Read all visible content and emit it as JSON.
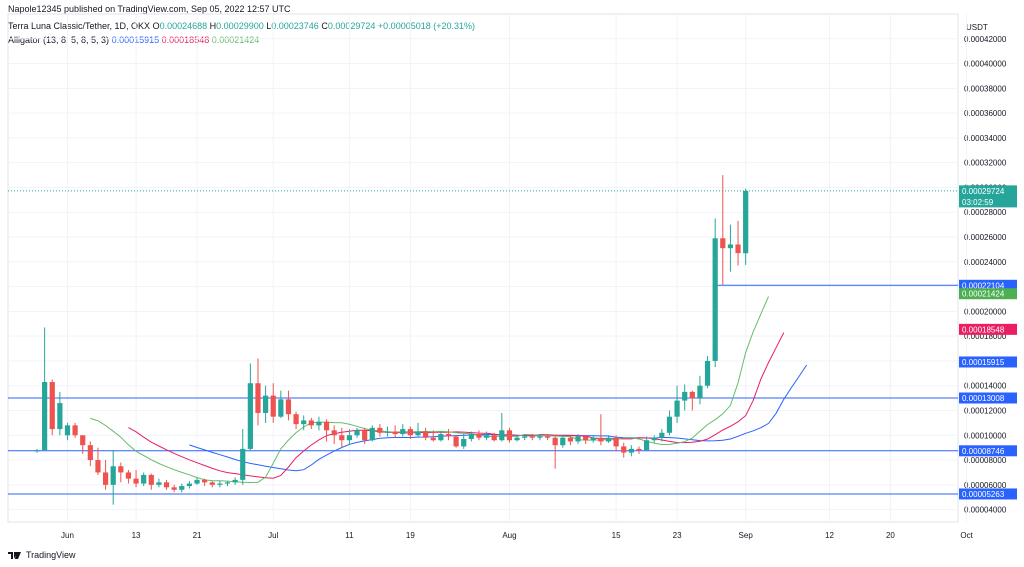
{
  "header": {
    "published": "Napole12345 published on TradingView.com, Sep 05, 2022 12:57 UTC",
    "symbol": "Terra Luna Classic/Tether, 1D, OKX",
    "o_label": "O",
    "o_val": "0.00024688",
    "h_label": "H",
    "h_val": "0.00029900",
    "l_label": "L",
    "l_val": "0.00023746",
    "c_label": "C",
    "c_val": "0.00029724",
    "change": "+0.00005018 (+20.31%)",
    "alligator_label": "Alligator (13, 8, 5, 8, 5, 3)",
    "jaw_val": "0.00015915",
    "teeth_val": "0.00018548",
    "lips_val": "0.00021424"
  },
  "footer": {
    "brand": "TradingView"
  },
  "colors": {
    "up": "#26a69a",
    "down": "#ef5350",
    "jaw": "#2962ff",
    "teeth": "#e91e63",
    "lips": "#66bb6a",
    "hline": "#2962ff",
    "grid": "#f0f3fa",
    "axis_text": "#131722"
  },
  "chart_data": {
    "type": "candlestick",
    "currency": "USDT",
    "ylim": [
      3e-05,
      0.00044
    ],
    "y_ticks": [
      "0.00004000",
      "0.00006000",
      "0.00008000",
      "0.00010000",
      "0.00012000",
      "0.00014000",
      "0.00016000",
      "0.00018000",
      "0.00020000",
      "0.00022000",
      "0.00024000",
      "0.00026000",
      "0.00028000",
      "0.00030000",
      "0.00032000",
      "0.00034000",
      "0.00036000",
      "0.00038000",
      "0.00040000",
      "0.00042000"
    ],
    "x_ticks": [
      {
        "label": "Jun",
        "day": 4
      },
      {
        "label": "13",
        "day": 13
      },
      {
        "label": "21",
        "day": 21
      },
      {
        "label": "Jul",
        "day": 31
      },
      {
        "label": "11",
        "day": 41
      },
      {
        "label": "19",
        "day": 49
      },
      {
        "label": "Aug",
        "day": 62
      },
      {
        "label": "15",
        "day": 76
      },
      {
        "label": "23",
        "day": 84
      },
      {
        "label": "Sep",
        "day": 93
      },
      {
        "label": "12",
        "day": 104
      },
      {
        "label": "20",
        "day": 112
      },
      {
        "label": "Oct",
        "day": 122
      }
    ],
    "candles": [
      [
        8.7e-05,
        8.8e-05,
        8.6e-05,
        8.9e-05
      ],
      [
        8.8e-05,
        0.000143,
        8.8e-05,
        0.000187
      ],
      [
        0.000143,
        0.000105,
        0.0001,
        0.000145
      ],
      [
        0.000105,
        0.000126,
        0.0001,
        0.000135
      ],
      [
        0.0001,
        0.000108,
        9.6e-05,
        0.00011
      ],
      [
        0.000108,
        0.0001,
        9.8e-05,
        0.00011
      ],
      [
        0.0001,
        9.2e-05,
        8.5e-05,
        0.0001
      ],
      [
        9.2e-05,
        8e-05,
        7.5e-05,
        9.5e-05
      ],
      [
        8e-05,
        7e-05,
        6.8e-05,
        9e-05
      ],
      [
        7e-05,
        6e-05,
        5.6e-05,
        8e-05
      ],
      [
        6e-05,
        7.5e-05,
        4.4e-05,
        8.8e-05
      ],
      [
        7.5e-05,
        7e-05,
        6.2e-05,
        7.8e-05
      ],
      [
        7e-05,
        6.5e-05,
        6.1e-05,
        7.2e-05
      ],
      [
        6.5e-05,
        6.1e-05,
        5.8e-05,
        7.2e-05
      ],
      [
        6.1e-05,
        6.8e-05,
        5.9e-05,
        7e-05
      ],
      [
        6.8e-05,
        6e-05,
        5.6e-05,
        6.9e-05
      ],
      [
        6e-05,
        6.2e-05,
        5.8e-05,
        6.5e-05
      ],
      [
        6.2e-05,
        5.8e-05,
        5.6e-05,
        6.4e-05
      ],
      [
        5.8e-05,
        5.6e-05,
        5.4e-05,
        6e-05
      ],
      [
        5.6e-05,
        5.9e-05,
        5.4e-05,
        6.1e-05
      ],
      [
        5.9e-05,
        6.1e-05,
        5.7e-05,
        6.3e-05
      ],
      [
        6.1e-05,
        6.4e-05,
        6e-05,
        6.6e-05
      ],
      [
        6.4e-05,
        6.2e-05,
        5.9e-05,
        6.5e-05
      ],
      [
        6.2e-05,
        6e-05,
        5.8e-05,
        6.3e-05
      ],
      [
        6e-05,
        6.1e-05,
        5.8e-05,
        6.3e-05
      ],
      [
        6.1e-05,
        6.2e-05,
        5.9e-05,
        6.3e-05
      ],
      [
        6.2e-05,
        6.4e-05,
        6e-05,
        6.6e-05
      ],
      [
        6.4e-05,
        8.9e-05,
        6e-05,
        0.000105
      ],
      [
        8.9e-05,
        0.000142,
        8.7e-05,
        0.000158
      ],
      [
        0.000142,
        0.000118,
        0.000108,
        0.000162
      ],
      [
        0.000118,
        0.000132,
        0.00011,
        0.00014
      ],
      [
        0.000132,
        0.000115,
        0.00011,
        0.000142
      ],
      [
        0.000115,
        0.000129,
        0.000114,
        0.000136
      ],
      [
        0.000129,
        0.000117,
        0.000112,
        0.000136
      ],
      [
        0.000117,
        0.000109,
        0.000105,
        0.000119
      ],
      [
        0.000109,
        0.000112,
        0.000104,
        0.000116
      ],
      [
        0.000112,
        0.000108,
        0.000105,
        0.000114
      ],
      [
        0.000108,
        0.000111,
        0.000104,
        0.000115
      ],
      [
        0.000111,
        0.000104,
        9.5e-05,
        0.000113
      ],
      [
        0.000104,
        0.0001,
        9.3e-05,
        0.000108
      ],
      [
        0.0001,
        9.6e-05,
        9e-05,
        0.000106
      ],
      [
        9.6e-05,
        0.0001,
        9.2e-05,
        0.000105
      ],
      [
        0.0001,
        0.000104,
        9.8e-05,
        0.000106
      ],
      [
        0.000104,
        9.6e-05,
        9.3e-05,
        0.000106
      ],
      [
        9.6e-05,
        0.000106,
        9.5e-05,
        0.000108
      ],
      [
        0.000106,
        0.000102,
        9.9e-05,
        0.000109
      ],
      [
        0.000102,
        0.000103,
        9.9e-05,
        0.000107
      ],
      [
        0.000103,
        0.000101,
        9.8e-05,
        0.000108
      ],
      [
        0.000101,
        0.000105,
        9.9e-05,
        0.000109
      ],
      [
        0.000105,
        0.0001,
        9.7e-05,
        0.000107
      ],
      [
        0.0001,
        0.000103,
        9.9e-05,
        0.00011
      ],
      [
        0.000103,
        9.8e-05,
        9.6e-05,
        0.000106
      ],
      [
        9.8e-05,
        9.6e-05,
        9.5e-05,
        0.000104
      ],
      [
        9.6e-05,
        0.000101,
        9.5e-05,
        0.000103
      ],
      [
        0.000101,
        9.9e-05,
        9.6e-05,
        0.000105
      ],
      [
        9.9e-05,
        9.1e-05,
        9e-05,
        0.0001
      ],
      [
        9.1e-05,
        9.7e-05,
        8.9e-05,
        0.000101
      ],
      [
        9.7e-05,
        0.000101,
        9.5e-05,
        0.000103
      ],
      [
        0.000101,
        9.8e-05,
        9.6e-05,
        0.000104
      ],
      [
        9.8e-05,
        0.0001,
        9.6e-05,
        0.000103
      ],
      [
        0.0001,
        9.6e-05,
        9.5e-05,
        0.000102
      ],
      [
        9.6e-05,
        0.000104,
        9.5e-05,
        0.000118
      ],
      [
        0.000104,
        9.6e-05,
        9.4e-05,
        0.000106
      ],
      [
        9.6e-05,
        9.8e-05,
        9.5e-05,
        0.0001
      ],
      [
        9.8e-05,
        9.9e-05,
        9.6e-05,
        0.000101
      ],
      [
        9.9e-05,
        9.8e-05,
        9.6e-05,
        0.000101
      ],
      [
        9.8e-05,
        9.9e-05,
        9.6e-05,
        0.0001
      ],
      [
        9.9e-05,
        9.8e-05,
        9.6e-05,
        0.000101
      ],
      [
        9.8e-05,
        9.2e-05,
        7.3e-05,
        9.9e-05
      ],
      [
        9.2e-05,
        9.8e-05,
        9e-05,
        0.0001
      ],
      [
        9.8e-05,
        9.5e-05,
        9.2e-05,
        0.0001
      ],
      [
        9.5e-05,
        9.9e-05,
        9.3e-05,
        0.000101
      ],
      [
        9.9e-05,
        9.6e-05,
        9.3e-05,
        0.0001
      ],
      [
        9.6e-05,
        9.8e-05,
        9.4e-05,
        0.0001
      ],
      [
        9.8e-05,
        9.5e-05,
        9.2e-05,
        0.000117
      ],
      [
        9.5e-05,
        9.8e-05,
        9.4e-05,
        0.0001
      ],
      [
        9.8e-05,
        9.1e-05,
        8.7e-05,
        0.0001
      ],
      [
        9.1e-05,
        8.6e-05,
        8.2e-05,
        9.4e-05
      ],
      [
        8.6e-05,
        8.9e-05,
        8.3e-05,
        9.2e-05
      ],
      [
        8.9e-05,
        8.8e-05,
        8.5e-05,
        9.1e-05
      ],
      [
        8.8e-05,
        9.6e-05,
        8.7e-05,
        9.9e-05
      ],
      [
        9.6e-05,
        9.8e-05,
        9.4e-05,
        0.0001
      ],
      [
        9.8e-05,
        0.000102,
        9.5e-05,
        0.000105
      ],
      [
        0.000102,
        0.000115,
        0.0001,
        0.00012
      ],
      [
        0.000115,
        0.000128,
        0.00011,
        0.00014
      ],
      [
        0.000128,
        0.000135,
        0.00012,
        0.000141
      ],
      [
        0.000135,
        0.00013,
        0.00012,
        0.000136
      ],
      [
        0.00013,
        0.00014,
        0.000125,
        0.000148
      ],
      [
        0.00014,
        0.00016,
        0.000138,
        0.000164
      ],
      [
        0.00016,
        0.000259,
        0.000155,
        0.000275
      ],
      [
        0.000259,
        0.000251,
        0.000221,
        0.00031
      ],
      [
        0.000251,
        0.000254,
        0.000232,
        0.00027
      ],
      [
        0.000254,
        0.000247,
        0.000237,
        0.000273
      ],
      [
        0.0002469,
        0.0002972,
        0.0002375,
        0.000299
      ]
    ],
    "alligator": {
      "jaw": {
        "name": "Jaw",
        "offset": 8,
        "values": []
      },
      "teeth": {
        "name": "Teeth",
        "offset": 5,
        "values": []
      },
      "lips": {
        "name": "Lips",
        "offset": 3,
        "values": []
      }
    },
    "hlines": [
      0.00022104,
      0.00013008,
      8.746e-05,
      5.263e-05
    ],
    "price_labels": [
      {
        "value": 0.00029724,
        "text": "0.00029724",
        "sub": "03:02:59",
        "color": "#26a69a"
      },
      {
        "value": 0.00022104,
        "text": "0.00022104",
        "color": "#2962ff"
      },
      {
        "value": 0.00021424,
        "text": "0.00021424",
        "color": "#4caf50"
      },
      {
        "value": 0.00018548,
        "text": "0.00018548",
        "color": "#e91e63"
      },
      {
        "value": 0.00015915,
        "text": "0.00015915",
        "color": "#2962ff"
      },
      {
        "value": 0.00013008,
        "text": "0.00013008",
        "color": "#2962ff"
      },
      {
        "value": 8.746e-05,
        "text": "0.00008746",
        "color": "#2962ff"
      },
      {
        "value": 5.263e-05,
        "text": "0.00005263",
        "color": "#2962ff"
      }
    ]
  }
}
